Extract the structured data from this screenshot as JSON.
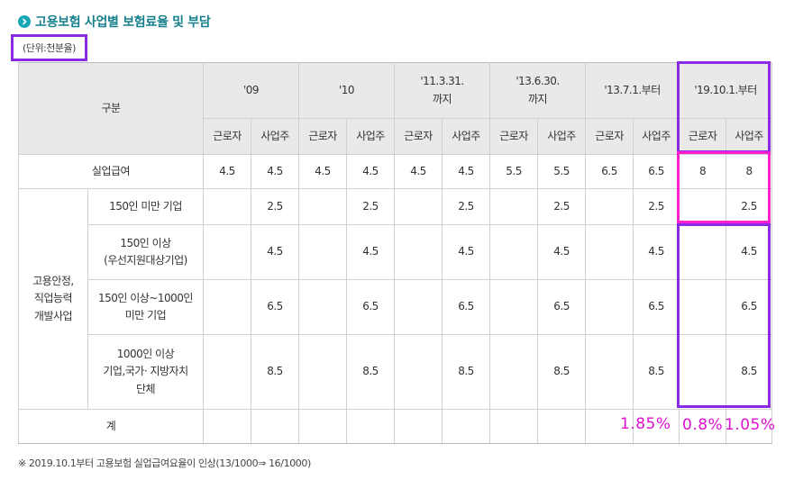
{
  "header": {
    "title": "고용보험 사업별 보험료율 및 부담",
    "unit": "(단위:천분율)"
  },
  "table": {
    "gubun": "구분",
    "periods": [
      "'09",
      "'10",
      "'11.3.31.\n까지",
      "'13.6.30.\n까지",
      "'13.7.1.부터",
      "'19.10.1.부터"
    ],
    "worker": "근로자",
    "employer": "사업주",
    "unemployment": {
      "label": "실업급여",
      "values": [
        "4.5",
        "4.5",
        "4.5",
        "4.5",
        "4.5",
        "4.5",
        "5.5",
        "5.5",
        "6.5",
        "6.5",
        "8",
        "8"
      ]
    },
    "group_label": "고용안정,\n직업능력\n개발사업",
    "sub_rows": [
      {
        "label": "150인 미만 기업",
        "value": "2.5"
      },
      {
        "label": "150인 이상\n(우선지원대상기업)",
        "value": "4.5"
      },
      {
        "label": "150인 이상~1000인\n미만 기업",
        "value": "6.5"
      },
      {
        "label": "1000인 이상\n기업,국가· 지방자치\n단체",
        "value": "8.5"
      }
    ],
    "total_label": "계"
  },
  "annotations": {
    "a1": "1.85%",
    "a2": "0.8%",
    "a3": "1.05%"
  },
  "footnote": "※ 2019.10.1부터 고용보험 실업급여요율이 인상(13/1000⇒ 16/1000)",
  "colors": {
    "accent": "#1aa7b5",
    "mark_purple": "#8a2be2",
    "mark_magenta": "#ff1fd2"
  }
}
